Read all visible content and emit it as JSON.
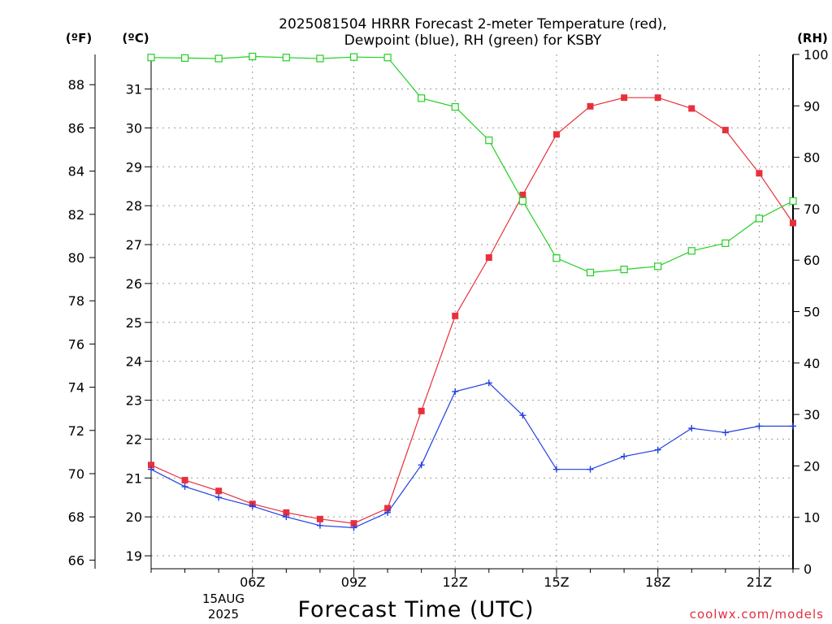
{
  "chart_data": {
    "type": "line",
    "title_line1": "2025081504 HRRR Forecast 2-meter Temperature (red),",
    "title_line2": "Dewpoint (blue), RH (green) for KSBY",
    "xlabel": "Forecast Time (UTC)",
    "unit_f": "(ºF)",
    "unit_c": "(ºC)",
    "unit_rh": "(RH)",
    "date_label_1": "15AUG",
    "date_label_2": "2025",
    "credit": "coolwx.com/models",
    "x_hours": [
      3,
      4,
      5,
      6,
      7,
      8,
      9,
      10,
      11,
      12,
      13,
      14,
      15,
      16,
      17,
      18,
      19,
      20,
      21,
      22
    ],
    "xlim": [
      3,
      22
    ],
    "x_ticks": [
      {
        "hour": 6,
        "label": "06Z"
      },
      {
        "hour": 9,
        "label": "09Z"
      },
      {
        "hour": 12,
        "label": "12Z"
      },
      {
        "hour": 15,
        "label": "15Z"
      },
      {
        "hour": 18,
        "label": "18Z"
      },
      {
        "hour": 21,
        "label": "21Z"
      }
    ],
    "ylim_f": [
      65.6,
      89.4
    ],
    "yticks_f": [
      66,
      68,
      70,
      72,
      74,
      76,
      78,
      80,
      82,
      84,
      86,
      88
    ],
    "yticks_c": [
      19,
      20,
      21,
      22,
      23,
      24,
      25,
      26,
      27,
      28,
      29,
      30,
      31
    ],
    "ylim_rh": [
      0,
      100
    ],
    "yticks_rh": [
      0,
      10,
      20,
      30,
      40,
      50,
      60,
      70,
      80,
      90,
      100
    ],
    "series": [
      {
        "name": "Temperature",
        "color": "#e8303c",
        "marker": "filled-square",
        "axis": "F",
        "values": [
          70.4,
          69.7,
          69.2,
          68.6,
          68.2,
          67.9,
          67.7,
          68.4,
          72.9,
          77.3,
          80.0,
          82.9,
          85.7,
          87.0,
          87.4,
          87.4,
          86.9,
          85.9,
          83.9,
          81.6
        ]
      },
      {
        "name": "Dewpoint",
        "color": "#2040e0",
        "marker": "plus",
        "axis": "F",
        "values": [
          70.2,
          69.4,
          68.9,
          68.5,
          68.0,
          67.6,
          67.5,
          68.2,
          70.4,
          73.8,
          74.2,
          72.7,
          70.2,
          70.2,
          70.8,
          71.1,
          72.1,
          71.9,
          72.2,
          72.2
        ]
      },
      {
        "name": "RH",
        "color": "#20d020",
        "marker": "open-square",
        "axis": "RH",
        "values": [
          99.4,
          99.3,
          99.2,
          99.6,
          99.4,
          99.2,
          99.5,
          99.4,
          91.5,
          89.8,
          83.3,
          71.5,
          60.4,
          57.6,
          58.2,
          58.8,
          61.8,
          63.3,
          68.1,
          71.5
        ]
      }
    ]
  }
}
